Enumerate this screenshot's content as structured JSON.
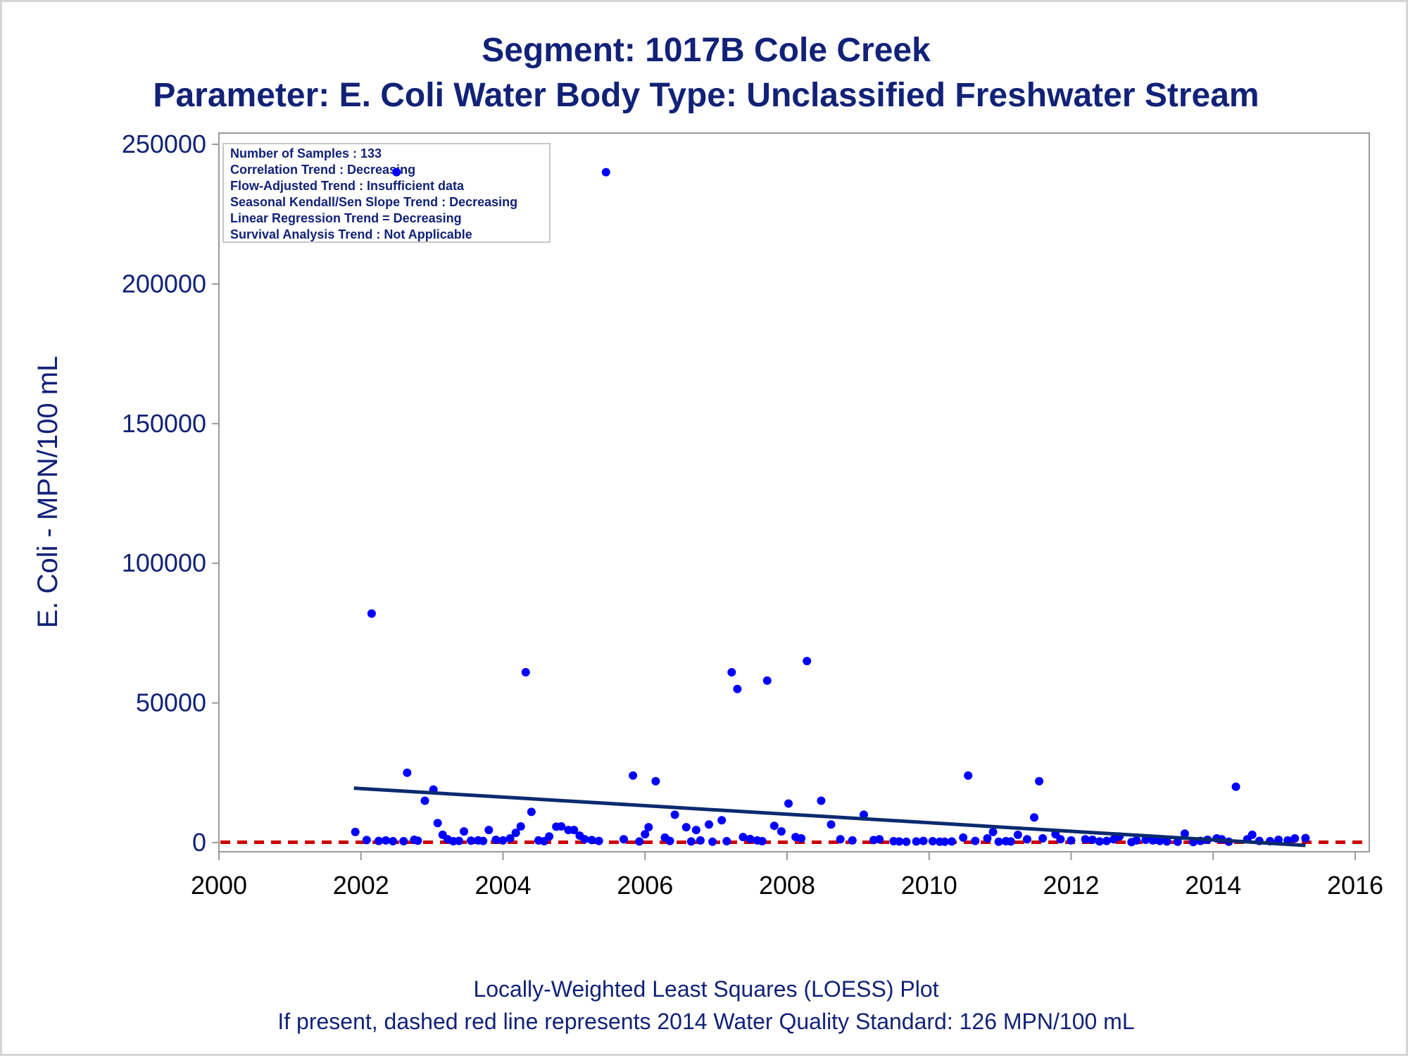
{
  "chart_data": {
    "type": "scatter",
    "title": "Segment: 1017B  Cole Creek",
    "subtitle": "Parameter: E. Coli   Water Body Type: Unclassified Freshwater Stream",
    "ylabel": "E. Coli - MPN/100 mL",
    "xlabel": "",
    "footnotes": [
      "Locally-Weighted Least Squares (LOESS) Plot",
      "If present, dashed red line represents 2014 Water Quality Standard: 126 MPN/100 mL"
    ],
    "xlim": [
      2000,
      2016
    ],
    "ylim": [
      -5000,
      252000
    ],
    "x_ticks": [
      2000,
      2002,
      2004,
      2006,
      2008,
      2010,
      2012,
      2014,
      2016
    ],
    "y_ticks": [
      0,
      50000,
      100000,
      150000,
      200000,
      250000
    ],
    "grid": false,
    "stats_box": {
      "placement": "top-left",
      "lines": [
        "Number of Samples : 133",
        "Correlation Trend : Decreasing",
        "Flow-Adjusted Trend : Insufficient data",
        "Seasonal Kendall/Sen Slope Trend : Decreasing",
        "Linear Regression Trend = Decreasing",
        "Survival Analysis Trend : Not Applicable"
      ]
    },
    "reference_line": {
      "y": 126,
      "color": "#cc0000",
      "style": "dashed"
    },
    "trend_line": {
      "x": [
        2001.9,
        2015.3
      ],
      "y": [
        19500,
        -1000
      ],
      "color": "#0b2a6f"
    },
    "marker_color": "#0000ff",
    "series": [
      {
        "x": [
          2001.92,
          2002.08,
          2002.15,
          2002.25,
          2002.35,
          2002.45,
          2002.5,
          2002.6,
          2002.65,
          2002.75,
          2002.8,
          2002.9,
          2003.02,
          2003.08,
          2003.15,
          2003.22,
          2003.3,
          2003.38,
          2003.45,
          2003.55,
          2003.65,
          2003.72,
          2003.8,
          2003.9,
          2004.0,
          2004.1,
          2004.18,
          2004.25,
          2004.32,
          2004.4,
          2004.5,
          2004.58,
          2004.65,
          2004.75,
          2004.82,
          2004.92,
          2005.0,
          2005.08,
          2005.15,
          2005.25,
          2005.35,
          2005.45,
          2005.7,
          2005.83,
          2005.92,
          2006.0,
          2006.05,
          2006.15,
          2006.28,
          2006.35,
          2006.42,
          2006.58,
          2006.65,
          2006.72,
          2006.78,
          2006.9,
          2006.95,
          2007.08,
          2007.15,
          2007.22,
          2007.3,
          2007.38,
          2007.48,
          2007.58,
          2007.65,
          2007.72,
          2007.82,
          2007.92,
          2008.02,
          2008.12,
          2008.2,
          2008.28,
          2008.48,
          2008.62,
          2008.75,
          2008.92,
          2009.08,
          2009.22,
          2009.3,
          2009.5,
          2009.58,
          2009.68,
          2009.82,
          2009.92,
          2010.05,
          2010.15,
          2010.22,
          2010.32,
          2010.48,
          2010.55,
          2010.65,
          2010.82,
          2010.9,
          2010.98,
          2011.08,
          2011.15,
          2011.25,
          2011.38,
          2011.48,
          2011.55,
          2011.6,
          2011.78,
          2011.85,
          2012.0,
          2012.2,
          2012.3,
          2012.4,
          2012.5,
          2012.6,
          2012.68,
          2012.85,
          2012.92,
          2013.05,
          2013.15,
          2013.25,
          2013.35,
          2013.5,
          2013.6,
          2013.72,
          2013.82,
          2013.92,
          2014.05,
          2014.12,
          2014.22,
          2014.32,
          2014.48,
          2014.55,
          2014.65,
          2014.8,
          2014.92,
          2015.05,
          2015.15,
          2015.3
        ],
        "y": [
          3800,
          900,
          82000,
          600,
          800,
          500,
          240000,
          500,
          25000,
          1000,
          700,
          15000,
          19000,
          7000,
          2800,
          1200,
          500,
          600,
          4000,
          700,
          800,
          600,
          4500,
          1000,
          800,
          1500,
          3500,
          5800,
          61000,
          11000,
          800,
          500,
          2200,
          5700,
          5800,
          4500,
          4500,
          2500,
          1200,
          900,
          600,
          240000,
          1200,
          24000,
          400,
          3000,
          5500,
          22000,
          1800,
          600,
          10000,
          5500,
          400,
          4500,
          800,
          6500,
          300,
          8000,
          500,
          61000,
          55000,
          2000,
          1300,
          800,
          500,
          58000,
          6000,
          4000,
          14000,
          2000,
          1500,
          65000,
          15000,
          6500,
          1200,
          800,
          10000,
          900,
          1200,
          500,
          400,
          300,
          400,
          600,
          500,
          300,
          300,
          400,
          1800,
          24000,
          600,
          1500,
          3800,
          300,
          500,
          400,
          2800,
          1200,
          9000,
          22000,
          1500,
          3000,
          1200,
          800,
          1200,
          1000,
          400,
          600,
          1200,
          2200,
          200,
          800,
          1000,
          800,
          600,
          400,
          300,
          3200,
          200,
          600,
          1000,
          1500,
          1200,
          300,
          20000,
          1200,
          2800,
          600,
          500,
          1000,
          800,
          1500,
          1600
        ]
      }
    ]
  }
}
